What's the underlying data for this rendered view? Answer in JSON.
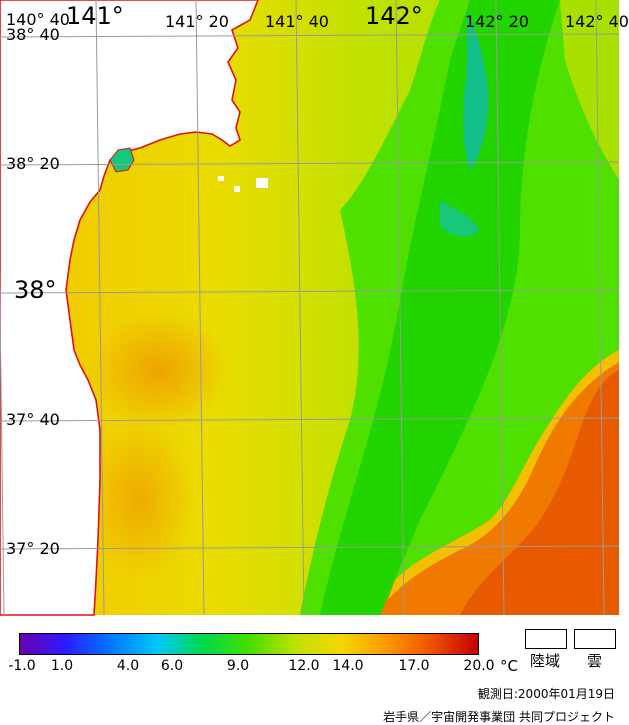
{
  "map": {
    "lon_labels": [
      "140° 40",
      "141°",
      "141° 20",
      "141° 40",
      "142°",
      "142° 20",
      "142° 40"
    ],
    "lat_labels": [
      "38° 40",
      "38° 20",
      "38°",
      "37° 40",
      "37° 20"
    ]
  },
  "colorbar": {
    "stops": [
      "#6a00b0",
      "#2a1cff",
      "#0079ff",
      "#00c8ff",
      "#00d84a",
      "#44e000",
      "#bfe100",
      "#f2d800",
      "#ff9a00",
      "#ef5000",
      "#c40000"
    ],
    "ticks": [
      "-1.0",
      "1.0",
      "4.0",
      "6.0",
      "9.0",
      "12.0",
      "14.0",
      "17.0",
      "20.0"
    ],
    "unit": "°C"
  },
  "legend": {
    "land_label": "陸域",
    "cloud_label": "雲"
  },
  "footer": {
    "observation_date": "観測日:2000年01月19日",
    "credit": "岩手県／宇宙開発事業団 共同プロジェクト"
  }
}
